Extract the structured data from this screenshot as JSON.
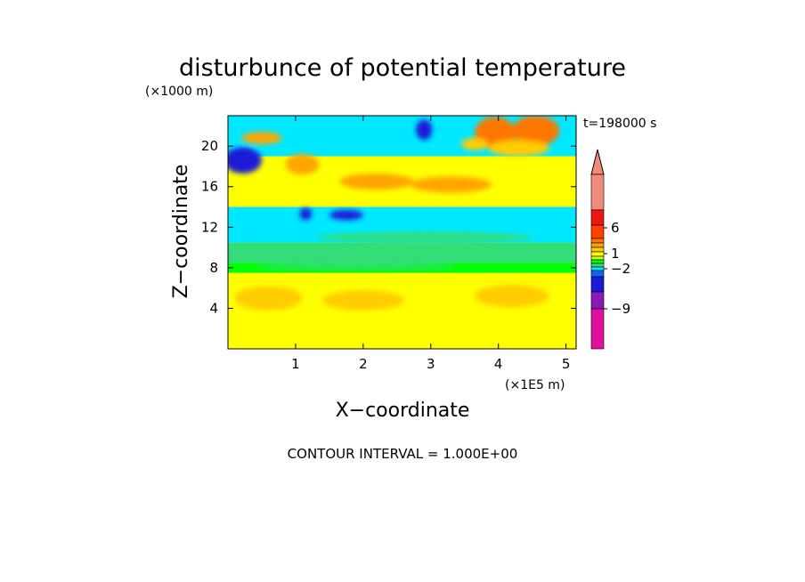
{
  "chart_data": {
    "type": "heatmap",
    "title": "disturbunce of potential temperature",
    "xlabel": "X−coordinate",
    "ylabel": "Z−coordinate",
    "x_unit": "(×1E5 m)",
    "y_unit": "(×1000 m)",
    "time_label": "t=198000 s",
    "contour_note": "CONTOUR INTERVAL = 1.000E+00",
    "xlim": [
      0,
      5.15
    ],
    "ylim": [
      0,
      23
    ],
    "x_ticks": [
      1,
      2,
      3,
      4,
      5
    ],
    "y_ticks": [
      4,
      8,
      12,
      16,
      20
    ],
    "x_tick_labels": [
      "1",
      "2",
      "3",
      "4",
      "5"
    ],
    "y_tick_labels": [
      "4",
      "8",
      "12",
      "16",
      "20"
    ],
    "colorbar": {
      "tick_labels": [
        "6",
        "1",
        "−2",
        "−9"
      ],
      "tick_values": [
        6,
        1,
        -2,
        -9
      ],
      "colors": {
        "neg_extreme": "#e0109e",
        "neg_9": "#8a1ab8",
        "neg_6": "#1a1ad8",
        "neg_3": "#0f66e8",
        "neg_2": "#00e8ff",
        "neg_1": "#33dd77",
        "zero": "#00ff00",
        "pos_1": "#ccff00",
        "pos_2": "#ffff00",
        "pos_3": "#ffcc00",
        "pos_4": "#ffa500",
        "pos_5": "#ff7700",
        "pos_6": "#ff4000",
        "pos_9": "#ee1515",
        "pos_extreme": "#f08a7a"
      }
    },
    "bands": [
      {
        "z0": 0,
        "z1": 1,
        "level": "pos_2"
      },
      {
        "z0": 1,
        "z1": 5,
        "level": "pos_2"
      },
      {
        "z0": 5,
        "z1": 7.5,
        "level": "pos_2"
      },
      {
        "z0": 7.5,
        "z1": 8.5,
        "level": "zero"
      },
      {
        "z0": 8.5,
        "z1": 10.5,
        "level": "neg_1"
      },
      {
        "z0": 10.5,
        "z1": 14,
        "level": "neg_2"
      },
      {
        "z0": 14,
        "z1": 19,
        "level": "pos_2"
      },
      {
        "z0": 19,
        "z1": 23,
        "level": "neg_2"
      }
    ],
    "blobs": [
      {
        "x": 0.22,
        "z": 18.6,
        "rx": 0.28,
        "rz": 1.3,
        "level": "neg_6"
      },
      {
        "x": 4.55,
        "z": 21.5,
        "rx": 0.35,
        "rz": 1.5,
        "level": "pos_5"
      },
      {
        "x": 3.95,
        "z": 21.3,
        "rx": 0.3,
        "rz": 1.6,
        "level": "pos_5"
      },
      {
        "x": 2.9,
        "z": 21.6,
        "rx": 0.12,
        "rz": 1.0,
        "level": "neg_6"
      },
      {
        "x": 1.15,
        "z": 13.3,
        "rx": 0.09,
        "rz": 0.6,
        "level": "neg_6"
      },
      {
        "x": 1.75,
        "z": 13.2,
        "rx": 0.25,
        "rz": 0.5,
        "level": "neg_6"
      },
      {
        "x": 1.1,
        "z": 18.2,
        "rx": 0.25,
        "rz": 1.0,
        "level": "pos_4"
      },
      {
        "x": 2.2,
        "z": 16.5,
        "rx": 0.55,
        "rz": 0.8,
        "level": "pos_4"
      },
      {
        "x": 3.3,
        "z": 16.2,
        "rx": 0.6,
        "rz": 0.8,
        "level": "pos_4"
      },
      {
        "x": 0.6,
        "z": 5.0,
        "rx": 0.5,
        "rz": 1.2,
        "level": "pos_3"
      },
      {
        "x": 2.0,
        "z": 4.8,
        "rx": 0.6,
        "rz": 1.0,
        "level": "pos_3"
      },
      {
        "x": 4.2,
        "z": 5.2,
        "rx": 0.55,
        "rz": 1.1,
        "level": "pos_3"
      },
      {
        "x": 2.9,
        "z": 11.0,
        "rx": 1.6,
        "rz": 0.5,
        "level": "neg_1"
      },
      {
        "x": 1.9,
        "z": 8.2,
        "rx": 1.5,
        "rz": 0.4,
        "level": "neg_1"
      },
      {
        "x": 4.3,
        "z": 19.8,
        "rx": 0.45,
        "rz": 0.8,
        "level": "pos_3"
      },
      {
        "x": 0.5,
        "z": 20.8,
        "rx": 0.3,
        "rz": 0.6,
        "level": "pos_4"
      },
      {
        "x": 3.65,
        "z": 20.2,
        "rx": 0.2,
        "rz": 0.6,
        "level": "pos_3"
      }
    ]
  }
}
